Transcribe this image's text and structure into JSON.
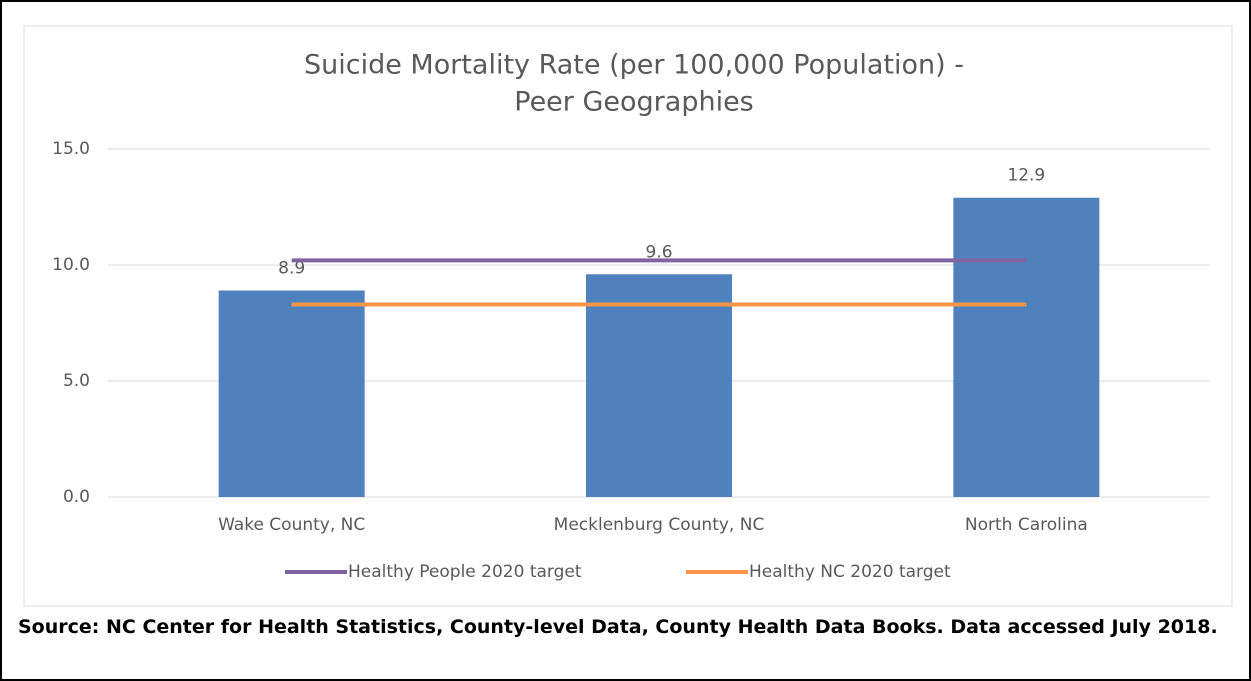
{
  "chart_data": {
    "type": "bar",
    "title": [
      "Suicide Mortality Rate (per 100,000 Population) -",
      "Peer Geographies"
    ],
    "categories": [
      "Wake County, NC",
      "Mecklenburg County, NC",
      "North Carolina"
    ],
    "values": [
      8.9,
      9.6,
      12.9
    ],
    "color": "#4f81bd",
    "series": [
      {
        "name": "Healthy People 2020 target",
        "color": "#8064a2",
        "values": [
          10.2,
          10.2,
          10.2
        ]
      },
      {
        "name": "Healthy NC 2020 target",
        "color": "#f79646",
        "values": [
          8.3,
          8.3,
          8.3
        ]
      }
    ],
    "ylim": [
      0,
      15
    ],
    "yticks": [
      {
        "value": 0,
        "label": "0.0"
      },
      {
        "value": 5,
        "label": "5.0"
      },
      {
        "value": 10,
        "label": "10.0"
      },
      {
        "value": 15,
        "label": "15.0"
      }
    ],
    "grid": true,
    "legend": "bottom"
  },
  "source": "Source: NC Center for Health Statistics, County-level Data, County Health Data Books. Data accessed July 2018."
}
